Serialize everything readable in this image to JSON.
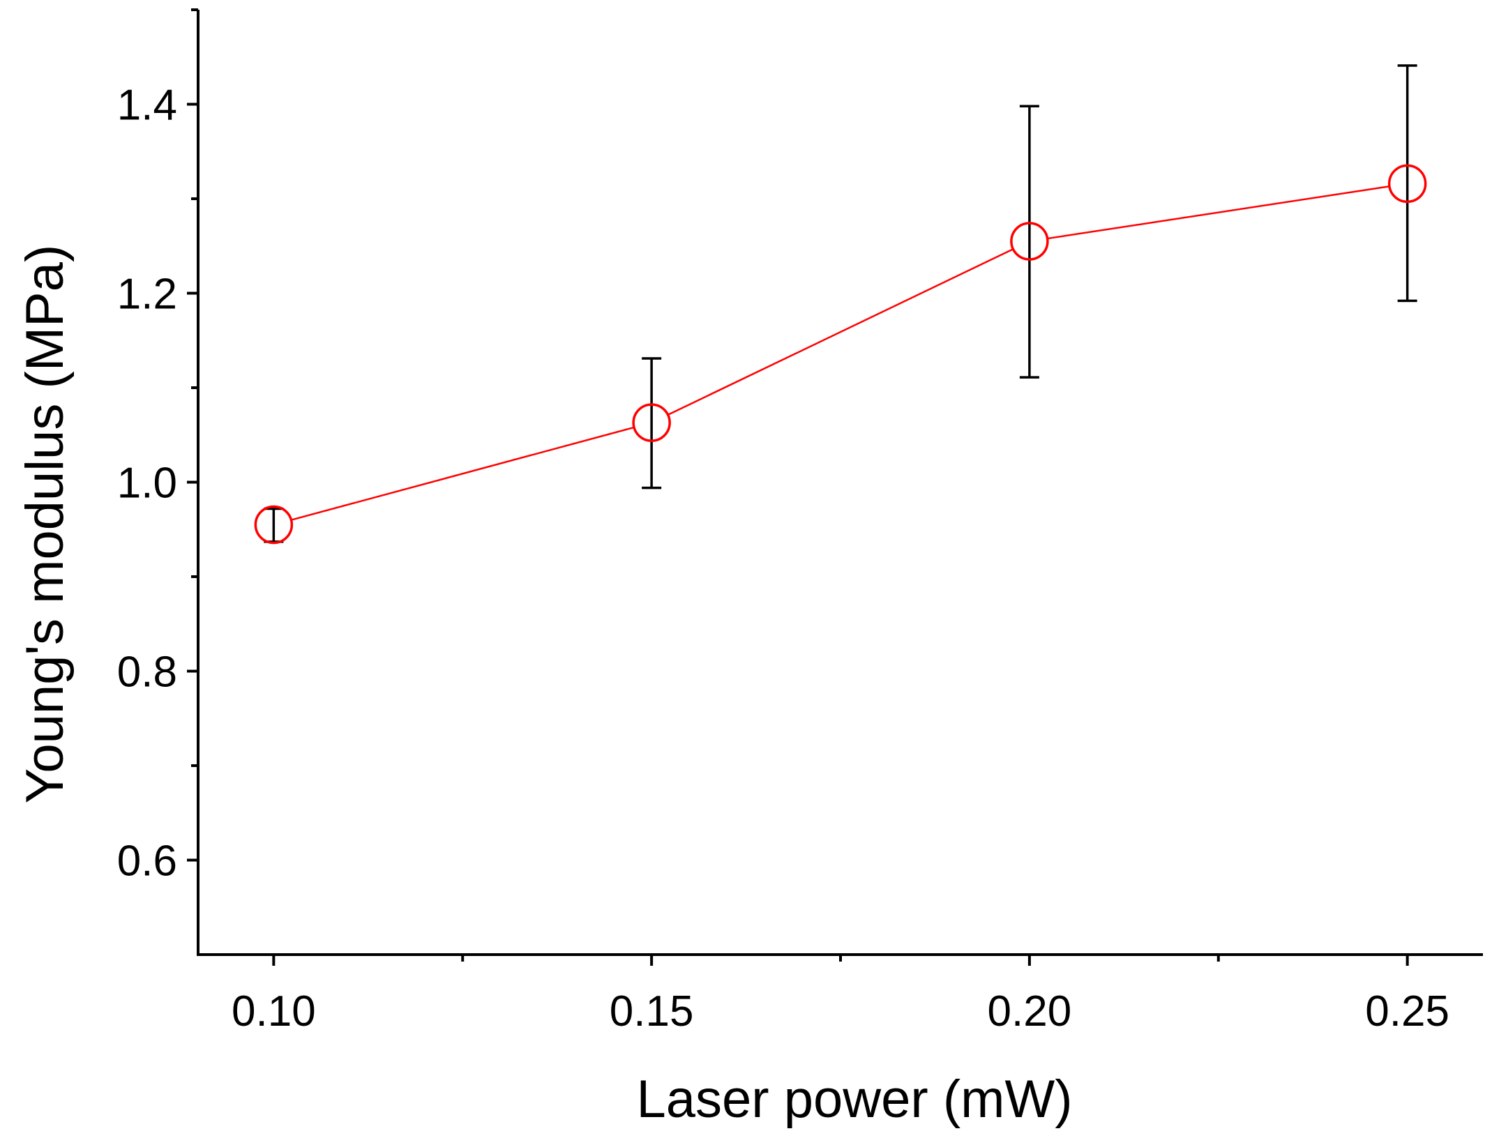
{
  "chart_data": {
    "type": "scatter",
    "title": "",
    "xlabel": "Laser power (mW)",
    "ylabel": "Young's modulus (MPa)",
    "xlim": [
      0.09,
      0.26
    ],
    "ylim": [
      0.5,
      1.5
    ],
    "x_ticks": [
      "0.10",
      "0.15",
      "0.20",
      "0.25"
    ],
    "x_tick_values": [
      0.1,
      0.15,
      0.2,
      0.25
    ],
    "x_minor_ticks": [
      0.125,
      0.175,
      0.225
    ],
    "y_ticks": [
      "0.6",
      "0.8",
      "1.0",
      "1.2",
      "1.4"
    ],
    "y_tick_values": [
      0.6,
      0.8,
      1.0,
      1.2,
      1.4
    ],
    "y_minor_ticks": [
      0.7,
      0.9,
      1.1,
      1.3,
      1.5
    ],
    "grid": false,
    "legend": "none",
    "series": [
      {
        "x": [
          0.1,
          0.15,
          0.2,
          0.25
        ],
        "y": [
          0.955,
          1.063,
          1.255,
          1.316
        ],
        "err_low": [
          0.937,
          0.994,
          1.111,
          1.192
        ],
        "err_high": [
          0.972,
          1.131,
          1.398,
          1.441
        ],
        "marker": "open-circle",
        "line_color": "#ff0000",
        "marker_color": "#ff0000",
        "error_bar_color": "#000000"
      }
    ]
  }
}
